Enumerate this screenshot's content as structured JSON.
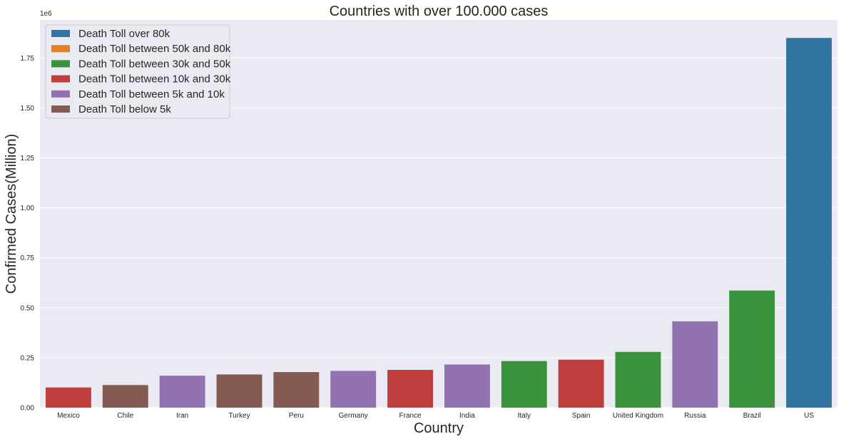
{
  "chart_data": {
    "type": "bar",
    "title": "Countries with over 100.000 cases",
    "xlabel": "Country",
    "ylabel": "Confirmed Cases(Million)",
    "y_offset_label": "1e6",
    "ylim": [
      0,
      1.94
    ],
    "yticks": [
      0,
      0.25,
      0.5,
      0.75,
      1.0,
      1.25,
      1.5,
      1.75
    ],
    "ytick_labels": [
      "0.00",
      "0.25",
      "0.50",
      "0.75",
      "1.00",
      "1.25",
      "1.50",
      "1.75"
    ],
    "grid": true,
    "legend_position": "top-left",
    "legend": [
      {
        "label": "Death Toll over 80k",
        "color": "#3274a1"
      },
      {
        "label": "Death Toll between 50k and 80k",
        "color": "#e1812c"
      },
      {
        "label": "Death Toll between 30k and 50k",
        "color": "#3a923a"
      },
      {
        "label": "Death Toll between 10k and 30k",
        "color": "#c03d3e"
      },
      {
        "label": "Death Toll between 5k and 10k",
        "color": "#9372b2"
      },
      {
        "label": "Death Toll below 5k",
        "color": "#845b53"
      }
    ],
    "categories": [
      "Mexico",
      "Chile",
      "Iran",
      "Turkey",
      "Peru",
      "Germany",
      "France",
      "India",
      "Italy",
      "Spain",
      "United Kingdom",
      "Russia",
      "Brazil",
      "US"
    ],
    "values": [
      0.101,
      0.113,
      0.16,
      0.166,
      0.178,
      0.184,
      0.189,
      0.216,
      0.233,
      0.24,
      0.279,
      0.432,
      0.586,
      1.85
    ],
    "bar_colors": [
      "#c03d3e",
      "#845b53",
      "#9372b2",
      "#845b53",
      "#845b53",
      "#9372b2",
      "#c03d3e",
      "#9372b2",
      "#3a923a",
      "#c03d3e",
      "#3a923a",
      "#9372b2",
      "#3a923a",
      "#3274a1"
    ]
  }
}
